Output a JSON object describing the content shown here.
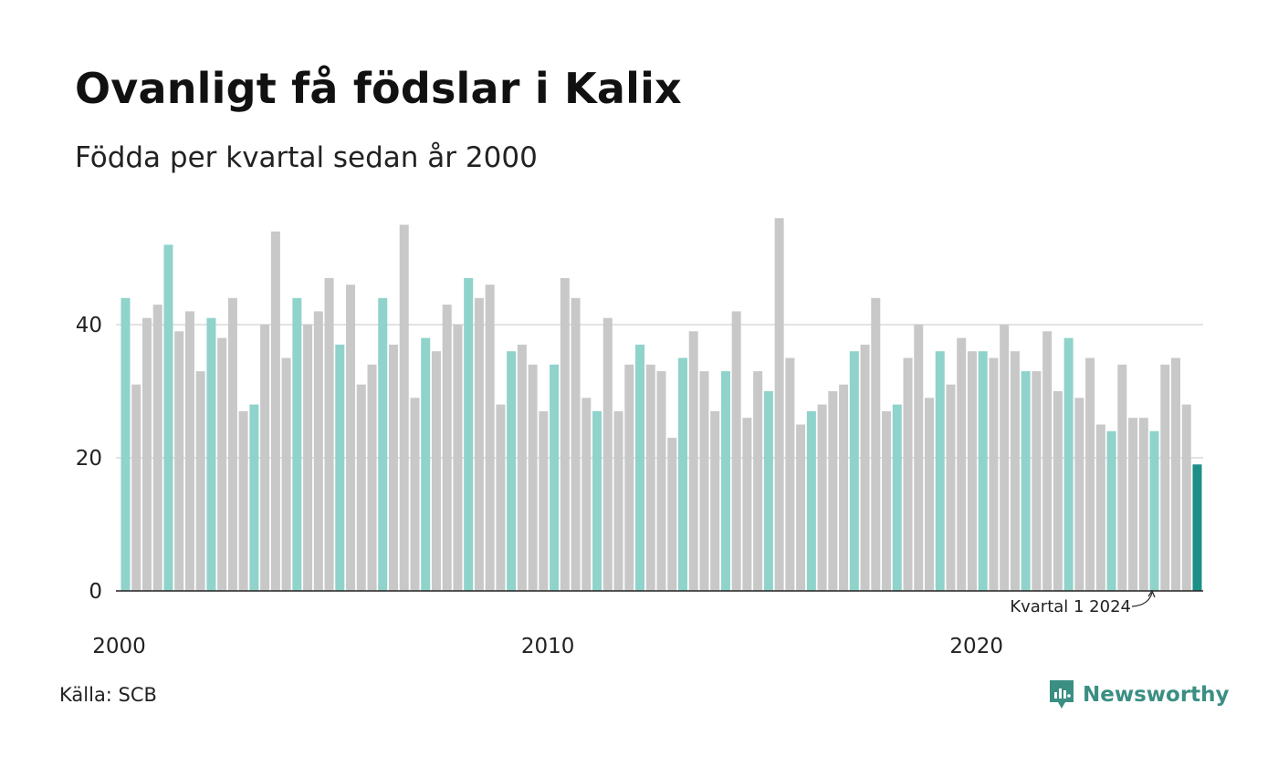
{
  "chart_data": {
    "type": "bar",
    "title": "Ovanligt få födslar i Kalix",
    "subtitle": "Födda per kvartal sedan år 2000",
    "ylim": [
      0,
      60
    ],
    "yticks": [
      0,
      20,
      40
    ],
    "grid": true,
    "x_tick_labels": [
      {
        "label": "2000",
        "quarter_index": 0
      },
      {
        "label": "2010",
        "quarter_index": 40
      },
      {
        "label": "2020",
        "quarter_index": 80
      }
    ],
    "start_year": 2000,
    "quarters": [
      "Q1",
      "Q2",
      "Q3",
      "Q4"
    ],
    "values": [
      44,
      31,
      41,
      43,
      52,
      39,
      42,
      33,
      41,
      38,
      44,
      27,
      28,
      40,
      54,
      35,
      44,
      40,
      42,
      47,
      37,
      46,
      31,
      34,
      44,
      37,
      55,
      29,
      38,
      36,
      43,
      40,
      47,
      44,
      46,
      28,
      36,
      37,
      34,
      27,
      34,
      47,
      44,
      29,
      27,
      41,
      27,
      34,
      37,
      34,
      33,
      23,
      35,
      39,
      33,
      27,
      33,
      42,
      26,
      33,
      30,
      56,
      35,
      25,
      27,
      28,
      30,
      31,
      36,
      37,
      44,
      27,
      28,
      35,
      40,
      29,
      36,
      31,
      38,
      36,
      36,
      35,
      40,
      36,
      33,
      33,
      39,
      30,
      38,
      29,
      35,
      25,
      24,
      34,
      26,
      26,
      24,
      34,
      35,
      28,
      19
    ],
    "annotation": {
      "text": "Kvartal 1 2024",
      "quarter_index": 96
    }
  },
  "colors": {
    "highlight_quarter": "#8fd3cb",
    "other_quarter": "#c8c8c8",
    "latest": "#1c8f86",
    "grid": "#e2e2e2",
    "axis": "#222222",
    "brand": "#3a8f82"
  },
  "footer": {
    "source": "Källa: SCB",
    "brand": "Newsworthy"
  }
}
